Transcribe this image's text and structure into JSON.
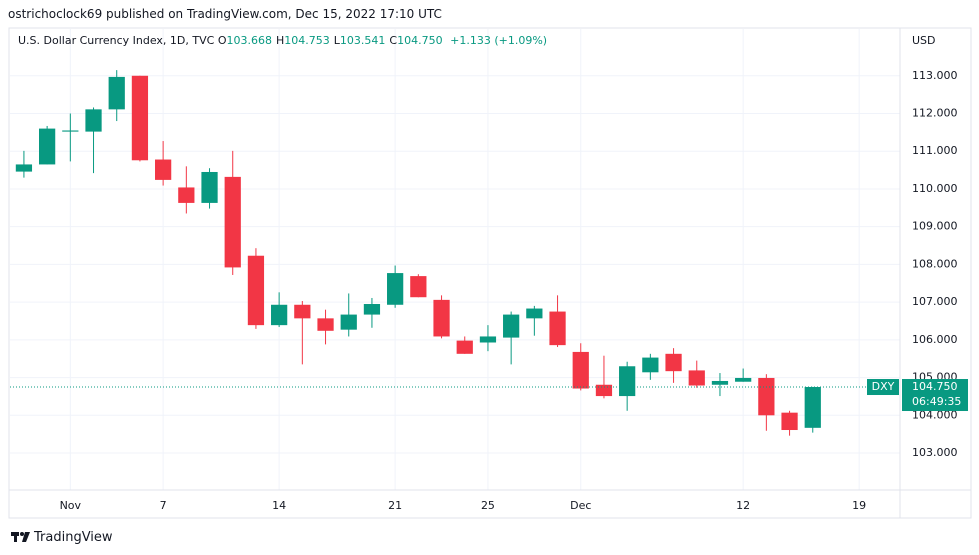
{
  "header": "ostrichoclock69 published on TradingView.com, Dec 15, 2022 17:10 UTC",
  "footer": "TradingView",
  "chart_data": {
    "type": "candlestick",
    "legend": {
      "title": "U.S. Dollar Currency Index, 1D, TVC",
      "items": [
        {
          "key": "O",
          "value": "103.668"
        },
        {
          "key": "H",
          "value": "104.753"
        },
        {
          "key": "L",
          "value": "103.541"
        },
        {
          "key": "C",
          "value": "104.750"
        }
      ],
      "change": "+1.133 (+1.09%)"
    },
    "currency": "USD",
    "up_color": "#089981",
    "down_color": "#f23645",
    "x": [
      0,
      1,
      2,
      3,
      4,
      5,
      6,
      7,
      8,
      9,
      10,
      11,
      12,
      13,
      14,
      15,
      16,
      17,
      18,
      19,
      20,
      21,
      22,
      23,
      24,
      25,
      26,
      27,
      28,
      29,
      30,
      31,
      32,
      33,
      34
    ],
    "open": [
      110.46,
      110.65,
      111.52,
      111.52,
      112.11,
      113.0,
      110.78,
      110.04,
      109.63,
      110.32,
      108.23,
      106.39,
      106.93,
      106.57,
      106.27,
      106.67,
      106.93,
      107.69,
      107.06,
      105.98,
      105.93,
      106.06,
      106.57,
      106.75,
      105.68,
      104.81,
      104.51,
      105.14,
      105.63,
      105.19,
      104.81,
      104.89,
      104.99,
      104.07,
      103.668
    ],
    "high": [
      111.01,
      111.67,
      112.0,
      112.16,
      113.15,
      113.0,
      111.27,
      110.6,
      110.55,
      111.01,
      108.43,
      107.26,
      107.03,
      106.8,
      107.23,
      107.11,
      107.97,
      107.74,
      107.18,
      106.09,
      106.39,
      106.75,
      106.9,
      107.18,
      105.91,
      105.58,
      105.42,
      105.63,
      105.78,
      105.45,
      105.12,
      105.24,
      105.09,
      104.12,
      104.753
    ],
    "low": [
      110.3,
      110.65,
      110.73,
      110.42,
      111.8,
      110.73,
      110.09,
      109.35,
      109.48,
      107.72,
      106.29,
      106.34,
      105.35,
      105.88,
      106.09,
      106.32,
      106.85,
      107.13,
      106.04,
      105.63,
      105.7,
      105.35,
      106.11,
      105.81,
      104.66,
      104.45,
      104.12,
      104.94,
      104.86,
      104.73,
      104.51,
      104.89,
      103.59,
      103.46,
      103.541
    ],
    "close": [
      110.65,
      111.6,
      111.55,
      112.11,
      112.97,
      110.76,
      110.24,
      109.63,
      110.45,
      107.92,
      106.39,
      106.93,
      106.57,
      106.24,
      106.67,
      106.95,
      107.77,
      107.13,
      106.09,
      105.63,
      106.09,
      106.67,
      106.83,
      105.86,
      104.71,
      104.51,
      105.3,
      105.53,
      105.17,
      104.79,
      104.91,
      104.99,
      104.0,
      103.61,
      104.75
    ],
    "xlim": [
      -0.6,
      37.76
    ],
    "xticks": [
      {
        "value": 2,
        "label": "Nov"
      },
      {
        "value": 6,
        "label": "7"
      },
      {
        "value": 11,
        "label": "14"
      },
      {
        "value": 16,
        "label": "21"
      },
      {
        "value": 20,
        "label": "25"
      },
      {
        "value": 24,
        "label": "Dec"
      },
      {
        "value": 31,
        "label": "12"
      },
      {
        "value": 36,
        "label": "19"
      }
    ],
    "ylim": [
      102.02,
      114.24
    ],
    "yticks": [
      {
        "value": 103,
        "label": "103.000"
      },
      {
        "value": 104,
        "label": "104.000"
      },
      {
        "value": 105,
        "label": "105.000"
      },
      {
        "value": 106,
        "label": "106.000"
      },
      {
        "value": 107,
        "label": "107.000"
      },
      {
        "value": 108,
        "label": "108.000"
      },
      {
        "value": 109,
        "label": "109.000"
      },
      {
        "value": 110,
        "label": "110.000"
      },
      {
        "value": 111,
        "label": "111.000"
      },
      {
        "value": 112,
        "label": "112.000"
      },
      {
        "value": 113,
        "label": "113.000"
      }
    ],
    "grid": true,
    "price_tag": {
      "symbol": "DXY",
      "value": 104.75,
      "label": "104.750",
      "countdown": "06:49:35"
    }
  }
}
